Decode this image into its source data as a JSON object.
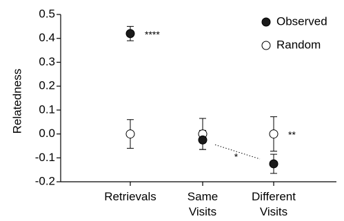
{
  "chart_data": {
    "type": "scatter",
    "title": "",
    "xlabel": "",
    "ylabel": "Relatedness",
    "ylim": [
      -0.2,
      0.5
    ],
    "yticks": [
      "0.5",
      "0.4",
      "0.3",
      "0.2",
      "0.1",
      "0.0",
      "-0.1",
      "-0.2"
    ],
    "ytick_values": [
      0.5,
      0.4,
      0.3,
      0.2,
      0.1,
      0.0,
      -0.1,
      -0.2
    ],
    "categories": [
      {
        "lines": [
          "Retrievals"
        ]
      },
      {
        "lines": [
          "Same",
          "Visits"
        ]
      },
      {
        "lines": [
          "Different",
          "Visits"
        ]
      }
    ],
    "grid": false,
    "legend_position": "top-right",
    "series": [
      {
        "name": "Observed",
        "marker": "filled-circle",
        "color": "#1a1a1a",
        "values": [
          0.42,
          -0.025,
          -0.125
        ],
        "errors": [
          0.03,
          0.04,
          0.04
        ]
      },
      {
        "name": "Random",
        "marker": "open-circle",
        "color": "#ffffff",
        "values": [
          0.0,
          0.0,
          0.0
        ],
        "errors": [
          0.06,
          0.065,
          0.072
        ]
      }
    ],
    "annotations": [
      {
        "text": "****",
        "category": 0,
        "series": "Observed"
      },
      {
        "text": "**",
        "category": 2,
        "series": "Random"
      },
      {
        "text": "*",
        "between": [
          1,
          2
        ],
        "series": "Observed",
        "connector": "dotted"
      }
    ]
  }
}
